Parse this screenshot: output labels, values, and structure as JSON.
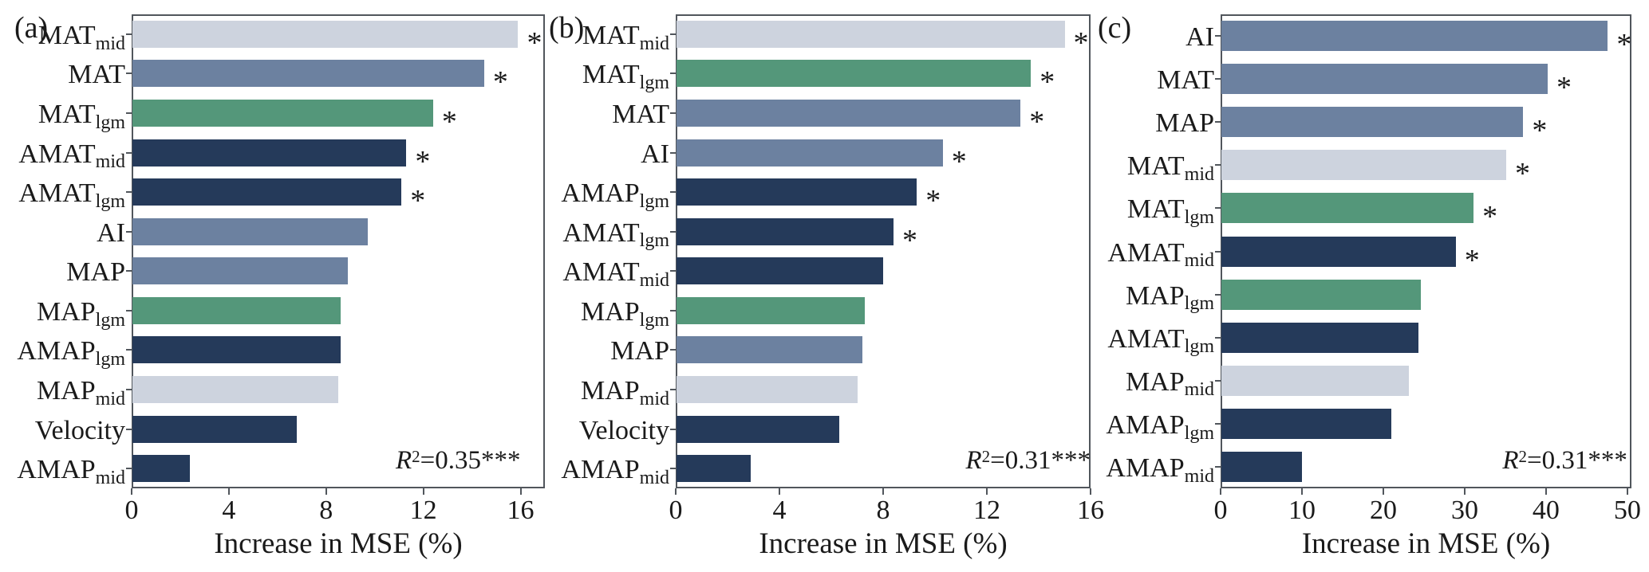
{
  "figure": {
    "significance_marker": "*",
    "palette": {
      "modern": "#6c81a0",
      "lgm": "#54977a",
      "mid": "#cdd3de",
      "anomaly": "#253a5a"
    },
    "frame_color": "#51565c",
    "background": "#ffffff"
  },
  "chart_data": [
    {
      "type": "bar",
      "orientation": "horizontal",
      "panel_label": "(a)",
      "xlabel": "Increase in MSE (%)",
      "xlim": [
        0,
        17
      ],
      "xticks": [
        0,
        4,
        8,
        12,
        16
      ],
      "grid": false,
      "r2": {
        "text": "R²=0.35***",
        "base": "R",
        "sup": "2",
        "rest": "=0.35***"
      },
      "bars": [
        {
          "label": "MAT",
          "sub": "mid",
          "value": 15.9,
          "color_key": "mid",
          "significant": true
        },
        {
          "label": "MAT",
          "sub": "",
          "value": 14.5,
          "color_key": "modern",
          "significant": true
        },
        {
          "label": "MAT",
          "sub": "lgm",
          "value": 12.4,
          "color_key": "lgm",
          "significant": true
        },
        {
          "label": "AMAT",
          "sub": "mid",
          "value": 11.3,
          "color_key": "anomaly",
          "significant": true
        },
        {
          "label": "AMAT",
          "sub": "lgm",
          "value": 11.1,
          "color_key": "anomaly",
          "significant": true
        },
        {
          "label": "AI",
          "sub": "",
          "value": 9.7,
          "color_key": "modern",
          "significant": false
        },
        {
          "label": "MAP",
          "sub": "",
          "value": 8.9,
          "color_key": "modern",
          "significant": false
        },
        {
          "label": "MAP",
          "sub": "lgm",
          "value": 8.6,
          "color_key": "lgm",
          "significant": false
        },
        {
          "label": "AMAP",
          "sub": "lgm",
          "value": 8.6,
          "color_key": "anomaly",
          "significant": false
        },
        {
          "label": "MAP",
          "sub": "mid",
          "value": 8.5,
          "color_key": "mid",
          "significant": false
        },
        {
          "label": "Velocity",
          "sub": "",
          "value": 6.8,
          "color_key": "anomaly",
          "significant": false
        },
        {
          "label": "AMAP",
          "sub": "mid",
          "value": 2.4,
          "color_key": "anomaly",
          "significant": false
        }
      ]
    },
    {
      "type": "bar",
      "orientation": "horizontal",
      "panel_label": "(b)",
      "xlabel": "Increase in MSE (%)",
      "xlim": [
        0,
        16
      ],
      "xticks": [
        0,
        4,
        8,
        12,
        16
      ],
      "grid": false,
      "r2": {
        "text": "R²=0.31***",
        "base": "R",
        "sup": "2",
        "rest": "=0.31***"
      },
      "bars": [
        {
          "label": "MAT",
          "sub": "mid",
          "value": 15.0,
          "color_key": "mid",
          "significant": true
        },
        {
          "label": "MAT",
          "sub": "lgm",
          "value": 13.7,
          "color_key": "lgm",
          "significant": true
        },
        {
          "label": "MAT",
          "sub": "",
          "value": 13.3,
          "color_key": "modern",
          "significant": true
        },
        {
          "label": "AI",
          "sub": "",
          "value": 10.3,
          "color_key": "modern",
          "significant": true
        },
        {
          "label": "AMAP",
          "sub": "lgm",
          "value": 9.3,
          "color_key": "anomaly",
          "significant": true
        },
        {
          "label": "AMAT",
          "sub": "lgm",
          "value": 8.4,
          "color_key": "anomaly",
          "significant": true
        },
        {
          "label": "AMAT",
          "sub": "mid",
          "value": 8.0,
          "color_key": "anomaly",
          "significant": false
        },
        {
          "label": "MAP",
          "sub": "lgm",
          "value": 7.3,
          "color_key": "lgm",
          "significant": false
        },
        {
          "label": "MAP",
          "sub": "",
          "value": 7.2,
          "color_key": "modern",
          "significant": false
        },
        {
          "label": "MAP",
          "sub": "mid",
          "value": 7.0,
          "color_key": "mid",
          "significant": false
        },
        {
          "label": "Velocity",
          "sub": "",
          "value": 6.3,
          "color_key": "anomaly",
          "significant": false
        },
        {
          "label": "AMAP",
          "sub": "mid",
          "value": 2.9,
          "color_key": "anomaly",
          "significant": false
        }
      ]
    },
    {
      "type": "bar",
      "orientation": "horizontal",
      "panel_label": "(c)",
      "xlabel": "Increase in MSE (%)",
      "xlim": [
        0,
        50.5
      ],
      "xticks": [
        0,
        10,
        20,
        30,
        40,
        50
      ],
      "grid": false,
      "r2": {
        "text": "R²=0.31***",
        "base": "R",
        "sup": "2",
        "rest": "=0.31***"
      },
      "bars": [
        {
          "label": "AI",
          "sub": "",
          "value": 47.6,
          "color_key": "modern",
          "significant": true
        },
        {
          "label": "MAT",
          "sub": "",
          "value": 40.2,
          "color_key": "modern",
          "significant": true
        },
        {
          "label": "MAP",
          "sub": "",
          "value": 37.2,
          "color_key": "modern",
          "significant": true
        },
        {
          "label": "MAT",
          "sub": "mid",
          "value": 35.1,
          "color_key": "mid",
          "significant": true
        },
        {
          "label": "MAT",
          "sub": "lgm",
          "value": 31.1,
          "color_key": "lgm",
          "significant": true
        },
        {
          "label": "AMAT",
          "sub": "mid",
          "value": 28.9,
          "color_key": "anomaly",
          "significant": true
        },
        {
          "label": "MAP",
          "sub": "lgm",
          "value": 24.6,
          "color_key": "lgm",
          "significant": false
        },
        {
          "label": "AMAT",
          "sub": "lgm",
          "value": 24.3,
          "color_key": "anomaly",
          "significant": false
        },
        {
          "label": "MAP",
          "sub": "mid",
          "value": 23.1,
          "color_key": "mid",
          "significant": false
        },
        {
          "label": "AMAP",
          "sub": "lgm",
          "value": 21.0,
          "color_key": "anomaly",
          "significant": false
        },
        {
          "label": "AMAP",
          "sub": "mid",
          "value": 10.0,
          "color_key": "anomaly",
          "significant": false
        }
      ]
    }
  ]
}
